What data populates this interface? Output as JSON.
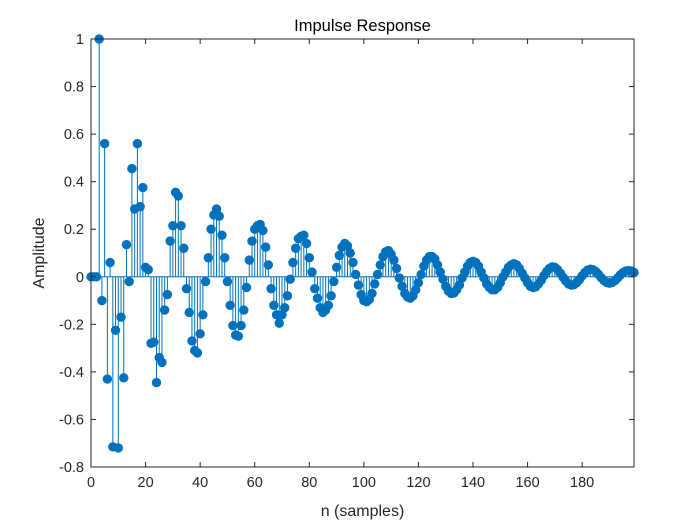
{
  "chart_data": {
    "type": "stem",
    "title": "Impulse Response",
    "xlabel": "n (samples)",
    "ylabel": "Amplitude",
    "xlim": [
      0,
      199
    ],
    "ylim": [
      -0.8,
      1
    ],
    "xticks": [
      0,
      20,
      40,
      60,
      80,
      100,
      120,
      140,
      160,
      180
    ],
    "yticks": [
      1,
      0.8,
      0.6,
      0.4,
      0.2,
      0,
      -0.2,
      -0.4,
      -0.6,
      -0.8
    ],
    "xtick_labels": [
      "0",
      "20",
      "40",
      "60",
      "80",
      "100",
      "120",
      "140",
      "160",
      "180"
    ],
    "ytick_labels": [
      "1",
      "0.8",
      "0.6",
      "0.4",
      "0.2",
      "0",
      "-0.2",
      "-0.4",
      "-0.6",
      "-0.8"
    ],
    "grid": false,
    "box": true,
    "colors": {
      "series": "#0072BD",
      "axes": "#262626"
    },
    "series": [
      {
        "x_start": 0,
        "x_step": 1,
        "values": [
          0.0,
          0.0,
          0.0,
          1.0,
          -0.1,
          0.56,
          -0.43,
          0.06,
          -0.715,
          -0.225,
          -0.72,
          -0.17,
          -0.425,
          0.135,
          -0.02,
          0.455,
          0.285,
          0.56,
          0.295,
          0.375,
          0.04,
          0.03,
          -0.28,
          -0.275,
          -0.445,
          -0.34,
          -0.36,
          -0.14,
          -0.075,
          0.15,
          0.215,
          0.355,
          0.34,
          0.215,
          0.12,
          -0.05,
          -0.15,
          -0.27,
          -0.31,
          -0.32,
          -0.24,
          -0.16,
          -0.02,
          0.08,
          0.2,
          0.26,
          0.285,
          0.255,
          0.175,
          0.08,
          -0.02,
          -0.12,
          -0.205,
          -0.245,
          -0.25,
          -0.205,
          -0.14,
          -0.045,
          0.07,
          0.15,
          0.2,
          0.215,
          0.22,
          0.195,
          0.125,
          0.05,
          -0.05,
          -0.12,
          -0.16,
          -0.195,
          -0.16,
          -0.13,
          -0.08,
          -0.01,
          0.06,
          0.12,
          0.16,
          0.17,
          0.175,
          0.14,
          0.08,
          0.02,
          -0.05,
          -0.09,
          -0.13,
          -0.15,
          -0.14,
          -0.12,
          -0.08,
          -0.02,
          0.04,
          0.09,
          0.125,
          0.14,
          0.13,
          0.1,
          0.06,
          0.01,
          -0.035,
          -0.075,
          -0.1,
          -0.105,
          -0.095,
          -0.07,
          -0.03,
          0.01,
          0.05,
          0.085,
          0.105,
          0.11,
          0.095,
          0.07,
          0.035,
          -0.005,
          -0.04,
          -0.07,
          -0.085,
          -0.09,
          -0.08,
          -0.055,
          -0.025,
          0.01,
          0.045,
          0.07,
          0.085,
          0.085,
          0.075,
          0.05,
          0.02,
          -0.01,
          -0.04,
          -0.06,
          -0.07,
          -0.068,
          -0.055,
          -0.035,
          -0.005,
          0.02,
          0.045,
          0.06,
          0.065,
          0.06,
          0.045,
          0.02,
          -0.005,
          -0.03,
          -0.045,
          -0.055,
          -0.055,
          -0.045,
          -0.025,
          0.0,
          0.02,
          0.04,
          0.05,
          0.055,
          0.05,
          0.035,
          0.015,
          -0.005,
          -0.025,
          -0.04,
          -0.045,
          -0.042,
          -0.03,
          -0.015,
          0.005,
          0.022,
          0.035,
          0.042,
          0.04,
          0.03,
          0.015,
          -0.002,
          -0.018,
          -0.03,
          -0.035,
          -0.033,
          -0.025,
          -0.012,
          0.004,
          0.018,
          0.028,
          0.032,
          0.03,
          0.022,
          0.01,
          -0.004,
          -0.016,
          -0.024,
          -0.027,
          -0.024,
          -0.016,
          -0.005,
          0.008,
          0.018,
          0.024,
          0.026,
          0.024,
          0.018
        ]
      }
    ]
  }
}
